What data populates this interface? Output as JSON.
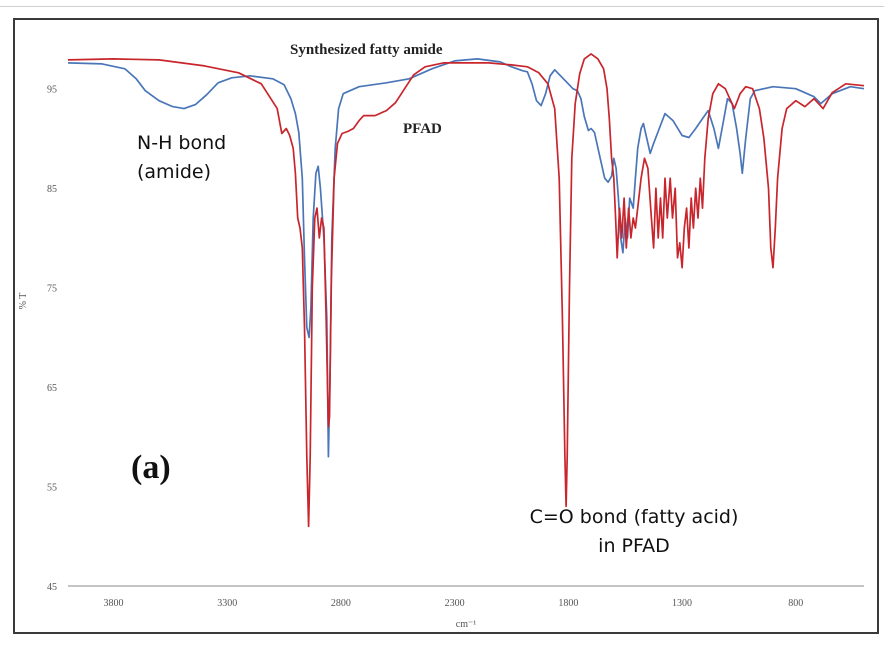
{
  "chart_data": {
    "type": "line",
    "xlabel": "cm⁻¹",
    "ylabel": "% T",
    "xlim": [
      4000,
      500
    ],
    "ylim": [
      45,
      100
    ],
    "xticks": [
      3800,
      3300,
      2800,
      2300,
      1800,
      1300,
      800
    ],
    "xtick_labels": [
      "3800",
      "3300",
      "2800",
      "2300",
      "1800",
      "1300",
      "800"
    ],
    "yticks": [
      95,
      85,
      75,
      65,
      55,
      45
    ],
    "ytick_labels": [
      "95",
      "85",
      "75",
      "65",
      "55",
      "45"
    ],
    "grid": false,
    "panel_label": "(a)",
    "series": [
      {
        "name": "Synthesized fatty amide",
        "color": "#4a76b8",
        "points": [
          [
            4000,
            97.6
          ],
          [
            3850,
            97.5
          ],
          [
            3750,
            97.0
          ],
          [
            3700,
            96.0
          ],
          [
            3660,
            94.8
          ],
          [
            3600,
            93.8
          ],
          [
            3540,
            93.2
          ],
          [
            3490,
            93.0
          ],
          [
            3440,
            93.4
          ],
          [
            3390,
            94.4
          ],
          [
            3340,
            95.6
          ],
          [
            3280,
            96.1
          ],
          [
            3200,
            96.3
          ],
          [
            3100,
            96.0
          ],
          [
            3050,
            95.4
          ],
          [
            3020,
            94.0
          ],
          [
            3000,
            92.5
          ],
          [
            2985,
            90.6
          ],
          [
            2970,
            86.0
          ],
          [
            2960,
            78.0
          ],
          [
            2950,
            71.0
          ],
          [
            2940,
            70.0
          ],
          [
            2932,
            73.0
          ],
          [
            2922,
            82.0
          ],
          [
            2910,
            86.5
          ],
          [
            2900,
            87.2
          ],
          [
            2890,
            85.0
          ],
          [
            2875,
            80.0
          ],
          [
            2862,
            72.0
          ],
          [
            2855,
            58.0
          ],
          [
            2848,
            66.0
          ],
          [
            2840,
            80.0
          ],
          [
            2825,
            89.0
          ],
          [
            2810,
            93.0
          ],
          [
            2790,
            94.5
          ],
          [
            2720,
            95.2
          ],
          [
            2600,
            95.6
          ],
          [
            2500,
            96.0
          ],
          [
            2400,
            97.0
          ],
          [
            2300,
            97.8
          ],
          [
            2200,
            98.0
          ],
          [
            2100,
            97.7
          ],
          [
            2050,
            97.2
          ],
          [
            2000,
            96.8
          ],
          [
            1980,
            96.7
          ],
          [
            1960,
            95.5
          ],
          [
            1940,
            93.8
          ],
          [
            1920,
            93.3
          ],
          [
            1900,
            94.5
          ],
          [
            1880,
            96.3
          ],
          [
            1860,
            96.9
          ],
          [
            1830,
            96.2
          ],
          [
            1800,
            95.5
          ],
          [
            1780,
            95.0
          ],
          [
            1760,
            94.8
          ],
          [
            1745,
            94.0
          ],
          [
            1730,
            92.2
          ],
          [
            1712,
            90.8
          ],
          [
            1700,
            91.0
          ],
          [
            1685,
            90.6
          ],
          [
            1660,
            88.0
          ],
          [
            1640,
            86.0
          ],
          [
            1625,
            85.6
          ],
          [
            1610,
            86.2
          ],
          [
            1600,
            88.0
          ],
          [
            1590,
            87.0
          ],
          [
            1580,
            84.0
          ],
          [
            1570,
            80.0
          ],
          [
            1560,
            78.5
          ],
          [
            1550,
            82.0
          ],
          [
            1540,
            80.0
          ],
          [
            1530,
            84.0
          ],
          [
            1515,
            83.0
          ],
          [
            1505,
            86.0
          ],
          [
            1495,
            89.0
          ],
          [
            1480,
            91.0
          ],
          [
            1470,
            91.5
          ],
          [
            1455,
            90.0
          ],
          [
            1440,
            88.5
          ],
          [
            1425,
            89.5
          ],
          [
            1400,
            91.0
          ],
          [
            1375,
            92.5
          ],
          [
            1340,
            91.8
          ],
          [
            1300,
            90.3
          ],
          [
            1270,
            90.1
          ],
          [
            1240,
            91.0
          ],
          [
            1210,
            92.0
          ],
          [
            1185,
            92.8
          ],
          [
            1160,
            91.0
          ],
          [
            1140,
            89.0
          ],
          [
            1120,
            91.5
          ],
          [
            1100,
            94.0
          ],
          [
            1080,
            93.5
          ],
          [
            1060,
            91.0
          ],
          [
            1045,
            88.5
          ],
          [
            1035,
            86.5
          ],
          [
            1020,
            90.0
          ],
          [
            1000,
            94.0
          ],
          [
            980,
            94.8
          ],
          [
            900,
            95.2
          ],
          [
            800,
            95.0
          ],
          [
            720,
            94.2
          ],
          [
            690,
            93.5
          ],
          [
            640,
            94.5
          ],
          [
            560,
            95.2
          ],
          [
            500,
            95.0
          ]
        ]
      },
      {
        "name": "PFAD",
        "color": "#c8262c",
        "points": [
          [
            4000,
            97.9
          ],
          [
            3800,
            98.0
          ],
          [
            3600,
            97.9
          ],
          [
            3400,
            97.3
          ],
          [
            3250,
            96.6
          ],
          [
            3150,
            95.5
          ],
          [
            3080,
            93.0
          ],
          [
            3060,
            90.5
          ],
          [
            3040,
            91.0
          ],
          [
            3025,
            90.3
          ],
          [
            3010,
            89.0
          ],
          [
            3000,
            86.5
          ],
          [
            2990,
            82.0
          ],
          [
            2980,
            81.0
          ],
          [
            2970,
            79.0
          ],
          [
            2960,
            71.0
          ],
          [
            2950,
            58.0
          ],
          [
            2942,
            51.0
          ],
          [
            2935,
            58.0
          ],
          [
            2926,
            75.0
          ],
          [
            2915,
            82.0
          ],
          [
            2905,
            83.0
          ],
          [
            2895,
            80.0
          ],
          [
            2885,
            82.0
          ],
          [
            2875,
            81.0
          ],
          [
            2865,
            72.0
          ],
          [
            2855,
            61.0
          ],
          [
            2850,
            62.0
          ],
          [
            2842,
            76.0
          ],
          [
            2830,
            86.0
          ],
          [
            2815,
            89.5
          ],
          [
            2795,
            90.5
          ],
          [
            2770,
            90.7
          ],
          [
            2745,
            91.0
          ],
          [
            2720,
            91.8
          ],
          [
            2700,
            92.3
          ],
          [
            2650,
            92.3
          ],
          [
            2600,
            92.8
          ],
          [
            2560,
            93.6
          ],
          [
            2520,
            95.0
          ],
          [
            2480,
            96.4
          ],
          [
            2430,
            97.2
          ],
          [
            2350,
            97.6
          ],
          [
            2250,
            97.6
          ],
          [
            2150,
            97.6
          ],
          [
            2050,
            97.4
          ],
          [
            1980,
            97.2
          ],
          [
            1930,
            96.6
          ],
          [
            1890,
            95.5
          ],
          [
            1860,
            93.0
          ],
          [
            1840,
            86.0
          ],
          [
            1826,
            72.0
          ],
          [
            1815,
            58.0
          ],
          [
            1810,
            53.0
          ],
          [
            1805,
            58.0
          ],
          [
            1795,
            75.0
          ],
          [
            1785,
            88.0
          ],
          [
            1770,
            93.5
          ],
          [
            1750,
            96.5
          ],
          [
            1730,
            98.0
          ],
          [
            1700,
            98.5
          ],
          [
            1670,
            98.0
          ],
          [
            1645,
            97.0
          ],
          [
            1630,
            95.0
          ],
          [
            1620,
            92.0
          ],
          [
            1610,
            88.0
          ],
          [
            1600,
            86.0
          ],
          [
            1592,
            82.0
          ],
          [
            1585,
            78.0
          ],
          [
            1575,
            83.0
          ],
          [
            1565,
            80.0
          ],
          [
            1555,
            84.0
          ],
          [
            1545,
            79.0
          ],
          [
            1535,
            83.0
          ],
          [
            1525,
            80.0
          ],
          [
            1515,
            82.0
          ],
          [
            1505,
            81.0
          ],
          [
            1495,
            83.0
          ],
          [
            1480,
            86.0
          ],
          [
            1465,
            88.0
          ],
          [
            1450,
            87.0
          ],
          [
            1435,
            82.0
          ],
          [
            1425,
            79.0
          ],
          [
            1415,
            85.0
          ],
          [
            1405,
            80.0
          ],
          [
            1395,
            84.0
          ],
          [
            1385,
            80.0
          ],
          [
            1375,
            86.0
          ],
          [
            1365,
            82.0
          ],
          [
            1352,
            86.0
          ],
          [
            1342,
            82.0
          ],
          [
            1330,
            85.0
          ],
          [
            1320,
            78.0
          ],
          [
            1310,
            79.5
          ],
          [
            1300,
            77.0
          ],
          [
            1290,
            81.0
          ],
          [
            1280,
            83.0
          ],
          [
            1270,
            79.0
          ],
          [
            1260,
            84.0
          ],
          [
            1250,
            81.0
          ],
          [
            1240,
            85.0
          ],
          [
            1230,
            82.0
          ],
          [
            1220,
            86.0
          ],
          [
            1210,
            83.0
          ],
          [
            1200,
            88.0
          ],
          [
            1185,
            92.0
          ],
          [
            1165,
            94.5
          ],
          [
            1140,
            95.5
          ],
          [
            1110,
            95.0
          ],
          [
            1090,
            94.0
          ],
          [
            1070,
            93.0
          ],
          [
            1045,
            94.5
          ],
          [
            1020,
            95.2
          ],
          [
            990,
            95.0
          ],
          [
            960,
            93.0
          ],
          [
            940,
            90.0
          ],
          [
            920,
            85.0
          ],
          [
            910,
            79.0
          ],
          [
            900,
            77.0
          ],
          [
            890,
            81.0
          ],
          [
            880,
            86.0
          ],
          [
            860,
            91.0
          ],
          [
            840,
            93.0
          ],
          [
            800,
            93.8
          ],
          [
            760,
            93.2
          ],
          [
            720,
            94.0
          ],
          [
            680,
            93.0
          ],
          [
            640,
            94.6
          ],
          [
            580,
            95.5
          ],
          [
            500,
            95.3
          ]
        ]
      }
    ],
    "annotations": [
      {
        "text": "Synthesized fatty  amide"
      },
      {
        "text": "PFAD"
      },
      {
        "line1": "N-H bond",
        "line2": "(amide)"
      },
      {
        "line1": "C=O bond (fatty acid)",
        "line2": "in PFAD"
      }
    ]
  }
}
